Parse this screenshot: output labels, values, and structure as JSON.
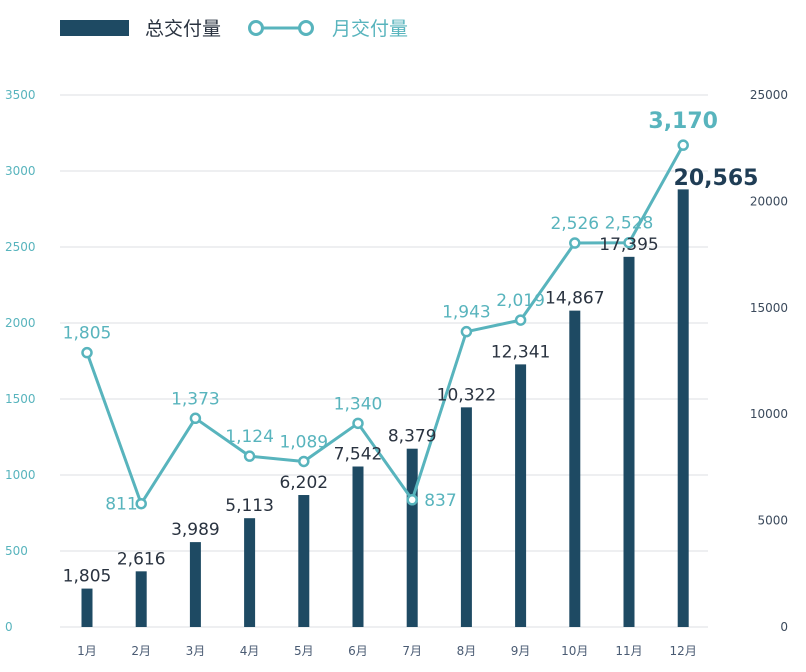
{
  "chart_data": {
    "type": "bar+line",
    "categories": [
      "1月",
      "2月",
      "3月",
      "4月",
      "5月",
      "6月",
      "7月",
      "8月",
      "9月",
      "10月",
      "11月",
      "12月"
    ],
    "series": [
      {
        "name": "总交付量",
        "type": "bar",
        "axis": "right",
        "color": "#1e4a63",
        "values": [
          1805,
          2616,
          3989,
          5113,
          6202,
          7542,
          8379,
          10322,
          12341,
          14867,
          17395,
          20565
        ],
        "labels": [
          "1,805",
          "2,616",
          "3,989",
          "5,113",
          "6,202",
          "7,542",
          "8,379",
          "10,322",
          "12,341",
          "14,867",
          "17,395",
          "20,565"
        ]
      },
      {
        "name": "月交付量",
        "type": "line",
        "axis": "left",
        "color": "#58b4bd",
        "values": [
          1805,
          811,
          1373,
          1124,
          1089,
          1340,
          837,
          1943,
          2019,
          2526,
          2528,
          3170
        ],
        "labels": [
          "1,805",
          "811",
          "1,373",
          "1,124",
          "1,089",
          "1,340",
          "837",
          "1,943",
          "2,019",
          "2,526",
          "2,528",
          "3,170"
        ]
      }
    ],
    "y_left": {
      "ylim": [
        0,
        3500
      ],
      "ticks": [
        "0",
        "500",
        "1000",
        "1500",
        "2000",
        "2500",
        "3000",
        "3500"
      ]
    },
    "y_right": {
      "ylim": [
        0,
        25000
      ],
      "ticks": [
        "0",
        "5000",
        "10000",
        "15000",
        "20000",
        "25000"
      ]
    },
    "grid": true,
    "legend_position": "top-left"
  }
}
